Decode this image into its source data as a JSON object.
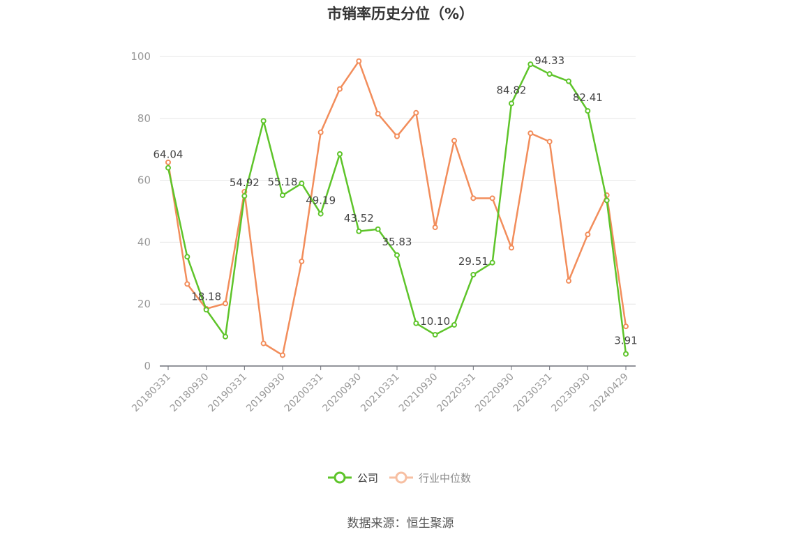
{
  "chart_data": {
    "type": "line",
    "title": "市销率历史分位（%）",
    "xlabel": "",
    "ylabel": "",
    "ylim": [
      0,
      100
    ],
    "y_ticks": [
      0,
      20,
      40,
      60,
      80,
      100
    ],
    "x": [
      "20180331",
      "20180630",
      "20180930",
      "20181231",
      "20190331",
      "20190630",
      "20190930",
      "20191231",
      "20200331",
      "20200630",
      "20200930",
      "20201231",
      "20210331",
      "20210630",
      "20210930",
      "20211231",
      "20220331",
      "20220630",
      "20220930",
      "20221231",
      "20230331",
      "20230630",
      "20230930",
      "20231231",
      "20240429"
    ],
    "x_tick_labels": [
      "20180331",
      "20180930",
      "20190331",
      "20190930",
      "20200331",
      "20200930",
      "20210331",
      "20210930",
      "20220331",
      "20220930",
      "20230331",
      "20230930",
      "20240429"
    ],
    "x_tick_indices": [
      0,
      2,
      4,
      6,
      8,
      10,
      12,
      14,
      16,
      18,
      20,
      22,
      24
    ],
    "series": [
      {
        "name": "公司",
        "color": "#5ec42a",
        "values": [
          64.04,
          35.3,
          18.18,
          9.5,
          54.92,
          79.2,
          55.18,
          59.0,
          49.19,
          68.5,
          43.52,
          44.2,
          35.83,
          13.8,
          10.1,
          13.3,
          29.51,
          33.4,
          84.82,
          97.5,
          94.33,
          92.0,
          82.41,
          53.5,
          3.91
        ],
        "data_labels": {
          "0": "64.04",
          "2": "18.18",
          "4": "54.92",
          "6": "55.18",
          "8": "49.19",
          "10": "43.52",
          "12": "35.83",
          "14": "10.10",
          "16": "29.51",
          "18": "84.82",
          "20": "94.33",
          "22": "82.41",
          "24": "3.91"
        }
      },
      {
        "name": "行业中位数",
        "color": "#f28d5b",
        "values": [
          65.8,
          26.5,
          18.5,
          20.2,
          56.3,
          7.3,
          3.5,
          33.8,
          75.5,
          89.5,
          98.5,
          81.5,
          74.2,
          81.8,
          44.8,
          72.8,
          54.2,
          54.2,
          38.2,
          75.2,
          72.5,
          27.5,
          42.5,
          55.2,
          12.8
        ]
      }
    ],
    "grid": true,
    "legend_position": "bottom-center"
  },
  "source_note": "数据来源：恒生聚源"
}
